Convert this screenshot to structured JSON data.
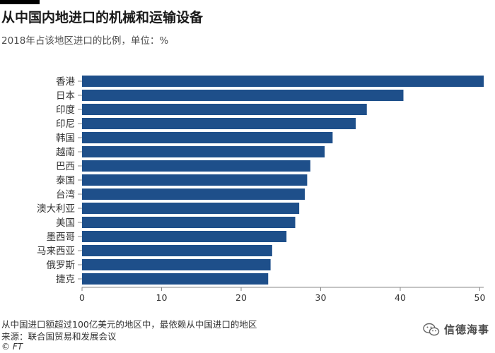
{
  "header": {
    "title": "从中国内地进口的机械和运输设备",
    "subtitle": "2018年占该地区进口的比例，单位：%"
  },
  "footer": {
    "footnote": "从中国进口额超过100亿美元的地区中，最依赖从中国进口的地区",
    "source": "来源：联合国贸易和发展会议",
    "credit": "© FT"
  },
  "watermark": {
    "text": "信德海事",
    "icon": "wechat-icon"
  },
  "colors": {
    "bar": "#1e4f8a",
    "axis": "#888888",
    "gridline": "#e6e6e6",
    "label": "#333333"
  },
  "chart_data": {
    "type": "bar",
    "orientation": "horizontal",
    "title": "从中国内地进口的机械和运输设备",
    "subtitle": "2018年占该地区进口的比例，单位：%",
    "categories": [
      "香港",
      "日本",
      "印度",
      "印尼",
      "韩国",
      "越南",
      "巴西",
      "泰国",
      "台湾",
      "澳大利亚",
      "美国",
      "墨西哥",
      "马来西亚",
      "俄罗斯",
      "捷克"
    ],
    "values": [
      50.5,
      40.4,
      35.8,
      34.4,
      31.5,
      30.5,
      28.7,
      28.3,
      28.0,
      27.3,
      26.8,
      25.7,
      23.9,
      23.7,
      23.4
    ],
    "xlim": [
      0,
      50
    ],
    "ticks": [
      0,
      10,
      20,
      30,
      40,
      50
    ],
    "tick_labels": [
      "0",
      "10",
      "20",
      "30",
      "40",
      "50"
    ],
    "grid": false,
    "xlabel": "",
    "ylabel": ""
  }
}
